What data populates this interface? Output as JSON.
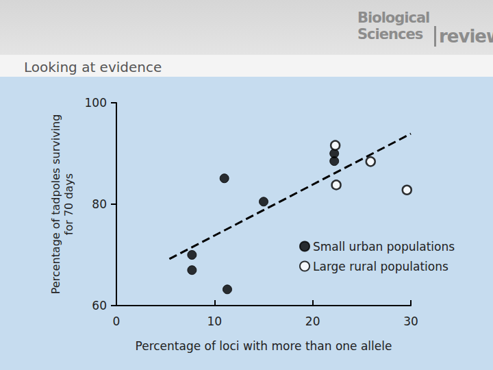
{
  "chart_data": {
    "type": "scatter",
    "title": "Looking at evidence",
    "x_label": "Percentage of loci with more than one allele",
    "y_label": "Percentage of tadpoles surviving\nfor 70 days",
    "series": [
      {
        "name": "Small urban populations",
        "color": "#000000",
        "marker": "filled",
        "x": [
          7.7,
          7.7,
          11.0,
          11.3,
          15.0,
          22.2,
          22.2
        ],
        "values": [
          70.0,
          67.0,
          85.1,
          63.2,
          80.5,
          90.0,
          88.5
        ]
      },
      {
        "name": "Large rural populations",
        "color": "#000000",
        "marker": "hollow",
        "x": [
          22.3,
          22.4,
          25.9,
          29.6
        ],
        "values": [
          91.6,
          83.8,
          88.4,
          82.8
        ]
      }
    ],
    "trend_line": {
      "x": [
        5.4,
        30
      ],
      "values": [
        69.2,
        93.9
      ],
      "color": "#000000",
      "line_style": "dashed"
    },
    "xlim": [
      0,
      30
    ],
    "xticks": [
      0,
      10,
      20,
      30
    ],
    "ylim": [
      60,
      100
    ],
    "yticks": [
      60,
      80,
      100
    ],
    "grid": false,
    "legend": "lower right"
  },
  "slide": {
    "logo": [
      "Biological",
      "Sciences",
      "review"
    ]
  }
}
